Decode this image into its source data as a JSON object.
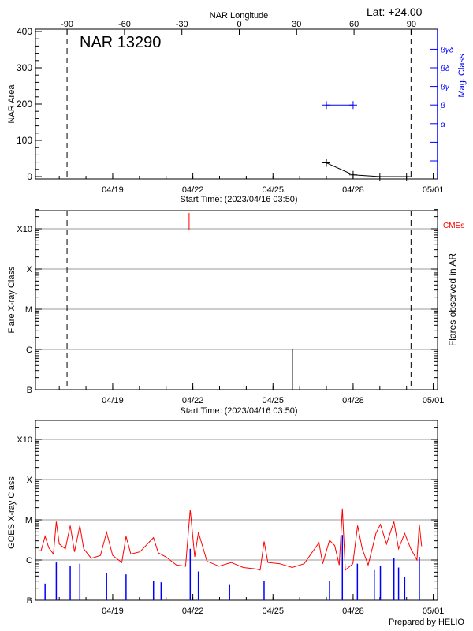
{
  "chart_data": [
    {
      "type": "line",
      "title": "NAR 13290",
      "lat_label": "Lat: +24.00",
      "xlabel": "Start Time: (2023/04/16 03:50)",
      "ylabel": "NAR Area",
      "ylim": [
        0,
        400
      ],
      "yticks": [
        0,
        100,
        200,
        300,
        400
      ],
      "x_range": [
        "2023-04-16 03:50",
        "2023-05-01 03:50"
      ],
      "xticks": [
        "04/19",
        "04/22",
        "04/25",
        "04/28",
        "05/01"
      ],
      "top_axis": {
        "label": "NAR Longitude",
        "ticks": [
          -90,
          -60,
          -30,
          0,
          30,
          60,
          90
        ]
      },
      "right_axis": {
        "label": "Mag. Class",
        "ticks": [
          "",
          "",
          "α",
          "β",
          "βγ",
          "βδ",
          "βγδ"
        ],
        "color": "#0000ff"
      },
      "area_series": {
        "x": [
          "2023-04-27 00:00",
          "2023-04-28 00:00",
          "2023-04-29 00:00",
          "2023-04-30 00:00"
        ],
        "y": [
          38,
          5,
          0,
          0
        ],
        "color": "#000000"
      },
      "mag_class_series": {
        "x": [
          "2023-04-27 00:00",
          "2023-04-28 00:00"
        ],
        "class": [
          "β",
          "β"
        ],
        "color": "#0000ff"
      },
      "limb_markers": {
        "x": [
          "2023-04-17 07:00",
          "2023-04-30 04:00"
        ],
        "longitude": [
          -90,
          90
        ]
      }
    },
    {
      "type": "bar",
      "xlabel": "Start Time: (2023/04/16 03:50)",
      "ylabel": "Flare X-ray Class",
      "right_label": "Flares observed in AR",
      "scale": "log",
      "yticks": [
        "B",
        "C",
        "M",
        "X",
        "X10"
      ],
      "x_range": [
        "2023-04-16 03:50",
        "2023-05-01 03:50"
      ],
      "xticks": [
        "04/19",
        "04/22",
        "04/25",
        "04/28",
        "05/01"
      ],
      "grid": true,
      "cme_label": "CMEs",
      "cme_color": "#ff0000",
      "cmes": [
        {
          "x": "2023-04-21 20:40"
        }
      ],
      "flares": [
        {
          "x": "2023-04-25 17:30",
          "class": "C1.0",
          "flux": 1e-06
        }
      ],
      "limb_markers": {
        "x": [
          "2023-04-17 07:00",
          "2023-04-30 04:00"
        ]
      }
    },
    {
      "type": "line",
      "xlabel": "",
      "ylabel": "GOES X-ray Class",
      "scale": "log",
      "yticks": [
        "B",
        "C",
        "M",
        "X",
        "X10"
      ],
      "x_range": [
        "2023-04-16 03:50",
        "2023-05-01 03:50"
      ],
      "xticks": [
        "04/19",
        "04/22",
        "04/25",
        "04/28",
        "05/01"
      ],
      "grid": true,
      "footer": "Prepared by HELIO",
      "series": [
        {
          "color": "#ff0000",
          "points": [
            [
              "2023-04-16 05:00",
              1.7e-06
            ],
            [
              "2023-04-16 07:40",
              1.7e-06
            ],
            [
              "2023-04-16 11:15",
              3.9e-06
            ],
            [
              "2023-04-16 14:40",
              2e-06
            ],
            [
              "2023-04-16 18:45",
              1.4e-06
            ],
            [
              "2023-04-16 21:20",
              9e-06
            ],
            [
              "2023-04-17 00:00",
              2.5e-06
            ],
            [
              "2023-04-17 05:30",
              1.9e-06
            ],
            [
              "2023-04-17 09:50",
              7.2e-06
            ],
            [
              "2023-04-17 13:40",
              1.6e-06
            ],
            [
              "2023-04-17 18:30",
              7.2e-06
            ],
            [
              "2023-04-17 22:00",
              1.9e-06
            ],
            [
              "2023-04-18 04:45",
              1.1e-06
            ],
            [
              "2023-04-18 13:00",
              1.3e-06
            ],
            [
              "2023-04-18 18:30",
              4.9e-06
            ],
            [
              "2023-04-19 00:00",
              1.3e-06
            ],
            [
              "2023-04-19 08:10",
              8.7e-07
            ],
            [
              "2023-04-19 12:00",
              3.9e-06
            ],
            [
              "2023-04-19 16:20",
              1.4e-06
            ],
            [
              "2023-04-20 00:30",
              1.6e-06
            ],
            [
              "2023-04-20 12:40",
              3.6e-06
            ],
            [
              "2023-04-20 17:00",
              1.5e-06
            ],
            [
              "2023-04-20 23:45",
              1.2e-06
            ],
            [
              "2023-04-21 09:20",
              7.5e-07
            ],
            [
              "2023-04-21 17:30",
              7e-07
            ],
            [
              "2023-04-21 21:40",
              1.8e-05
            ],
            [
              "2023-04-22 01:40",
              1.2e-06
            ],
            [
              "2023-04-22 05:00",
              4.9e-06
            ],
            [
              "2023-04-22 12:40",
              9.4e-07
            ],
            [
              "2023-04-22 23:30",
              7e-07
            ],
            [
              "2023-04-23 10:30",
              8.7e-07
            ],
            [
              "2023-04-23 21:20",
              6.5e-07
            ],
            [
              "2023-04-24 08:20",
              6e-07
            ],
            [
              "2023-04-24 12:30",
              5.6e-07
            ],
            [
              "2023-04-24 16:00",
              2.9e-06
            ],
            [
              "2023-04-24 19:25",
              8.7e-07
            ],
            [
              "2023-04-25 06:15",
              8.1e-07
            ],
            [
              "2023-04-25 17:20",
              6.5e-07
            ],
            [
              "2023-04-26 04:00",
              8.1e-07
            ],
            [
              "2023-04-26 17:20",
              2.7e-06
            ],
            [
              "2023-04-26 20:40",
              8.1e-07
            ],
            [
              "2023-04-27 02:50",
              3.1e-06
            ],
            [
              "2023-04-27 07:30",
              2.3e-06
            ],
            [
              "2023-04-27 11:30",
              7.5e-07
            ],
            [
              "2023-04-27 14:20",
              1.9e-05
            ],
            [
              "2023-04-27 17:00",
              5.6e-07
            ],
            [
              "2023-04-27 23:45",
              8.1e-07
            ],
            [
              "2023-04-28 04:00",
              7.2e-06
            ],
            [
              "2023-04-28 08:10",
              1.9e-06
            ],
            [
              "2023-04-28 13:30",
              7.5e-07
            ],
            [
              "2023-04-28 20:30",
              4.6e-06
            ],
            [
              "2023-04-29 00:30",
              7.7e-06
            ],
            [
              "2023-04-29 06:00",
              2.5e-06
            ],
            [
              "2023-04-29 12:40",
              9e-06
            ],
            [
              "2023-04-29 16:50",
              1.9e-06
            ],
            [
              "2023-04-29 22:20",
              4.6e-06
            ],
            [
              "2023-04-30 03:50",
              1.9e-06
            ],
            [
              "2023-04-30 09:20",
              1e-06
            ],
            [
              "2023-04-30 11:30",
              7.7e-06
            ],
            [
              "2023-04-30 13:30",
              2.2e-06
            ]
          ]
        },
        {
          "color": "#0000ff",
          "baseline": 1e-07,
          "spikes": [
            [
              "2023-04-16 11:15",
              2.6e-07
            ],
            [
              "2023-04-16 21:20",
              8.7e-07
            ],
            [
              "2023-04-17 09:50",
              7.3e-07
            ],
            [
              "2023-04-17 18:30",
              8.1e-07
            ],
            [
              "2023-04-18 18:30",
              4.8e-07
            ],
            [
              "2023-04-19 12:00",
              4.4e-07
            ],
            [
              "2023-04-20 12:40",
              3e-07
            ],
            [
              "2023-04-20 19:30",
              2.8e-07
            ],
            [
              "2023-04-21 21:40",
              1.9e-06
            ],
            [
              "2023-04-22 05:00",
              5.2e-07
            ],
            [
              "2023-04-23 09:00",
              2.4e-07
            ],
            [
              "2023-04-24 16:00",
              3e-07
            ],
            [
              "2023-04-27 02:50",
              3e-07
            ],
            [
              "2023-04-27 14:20",
              4.2e-06
            ],
            [
              "2023-04-28 03:50",
              8.1e-07
            ],
            [
              "2023-04-28 19:00",
              5.6e-07
            ],
            [
              "2023-04-29 00:30",
              7e-07
            ],
            [
              "2023-04-29 12:40",
              1.1e-06
            ],
            [
              "2023-04-29 16:50",
              6.5e-07
            ],
            [
              "2023-04-29 22:20",
              3.8e-07
            ],
            [
              "2023-04-30 11:30",
              1.2e-06
            ]
          ]
        }
      ]
    }
  ]
}
